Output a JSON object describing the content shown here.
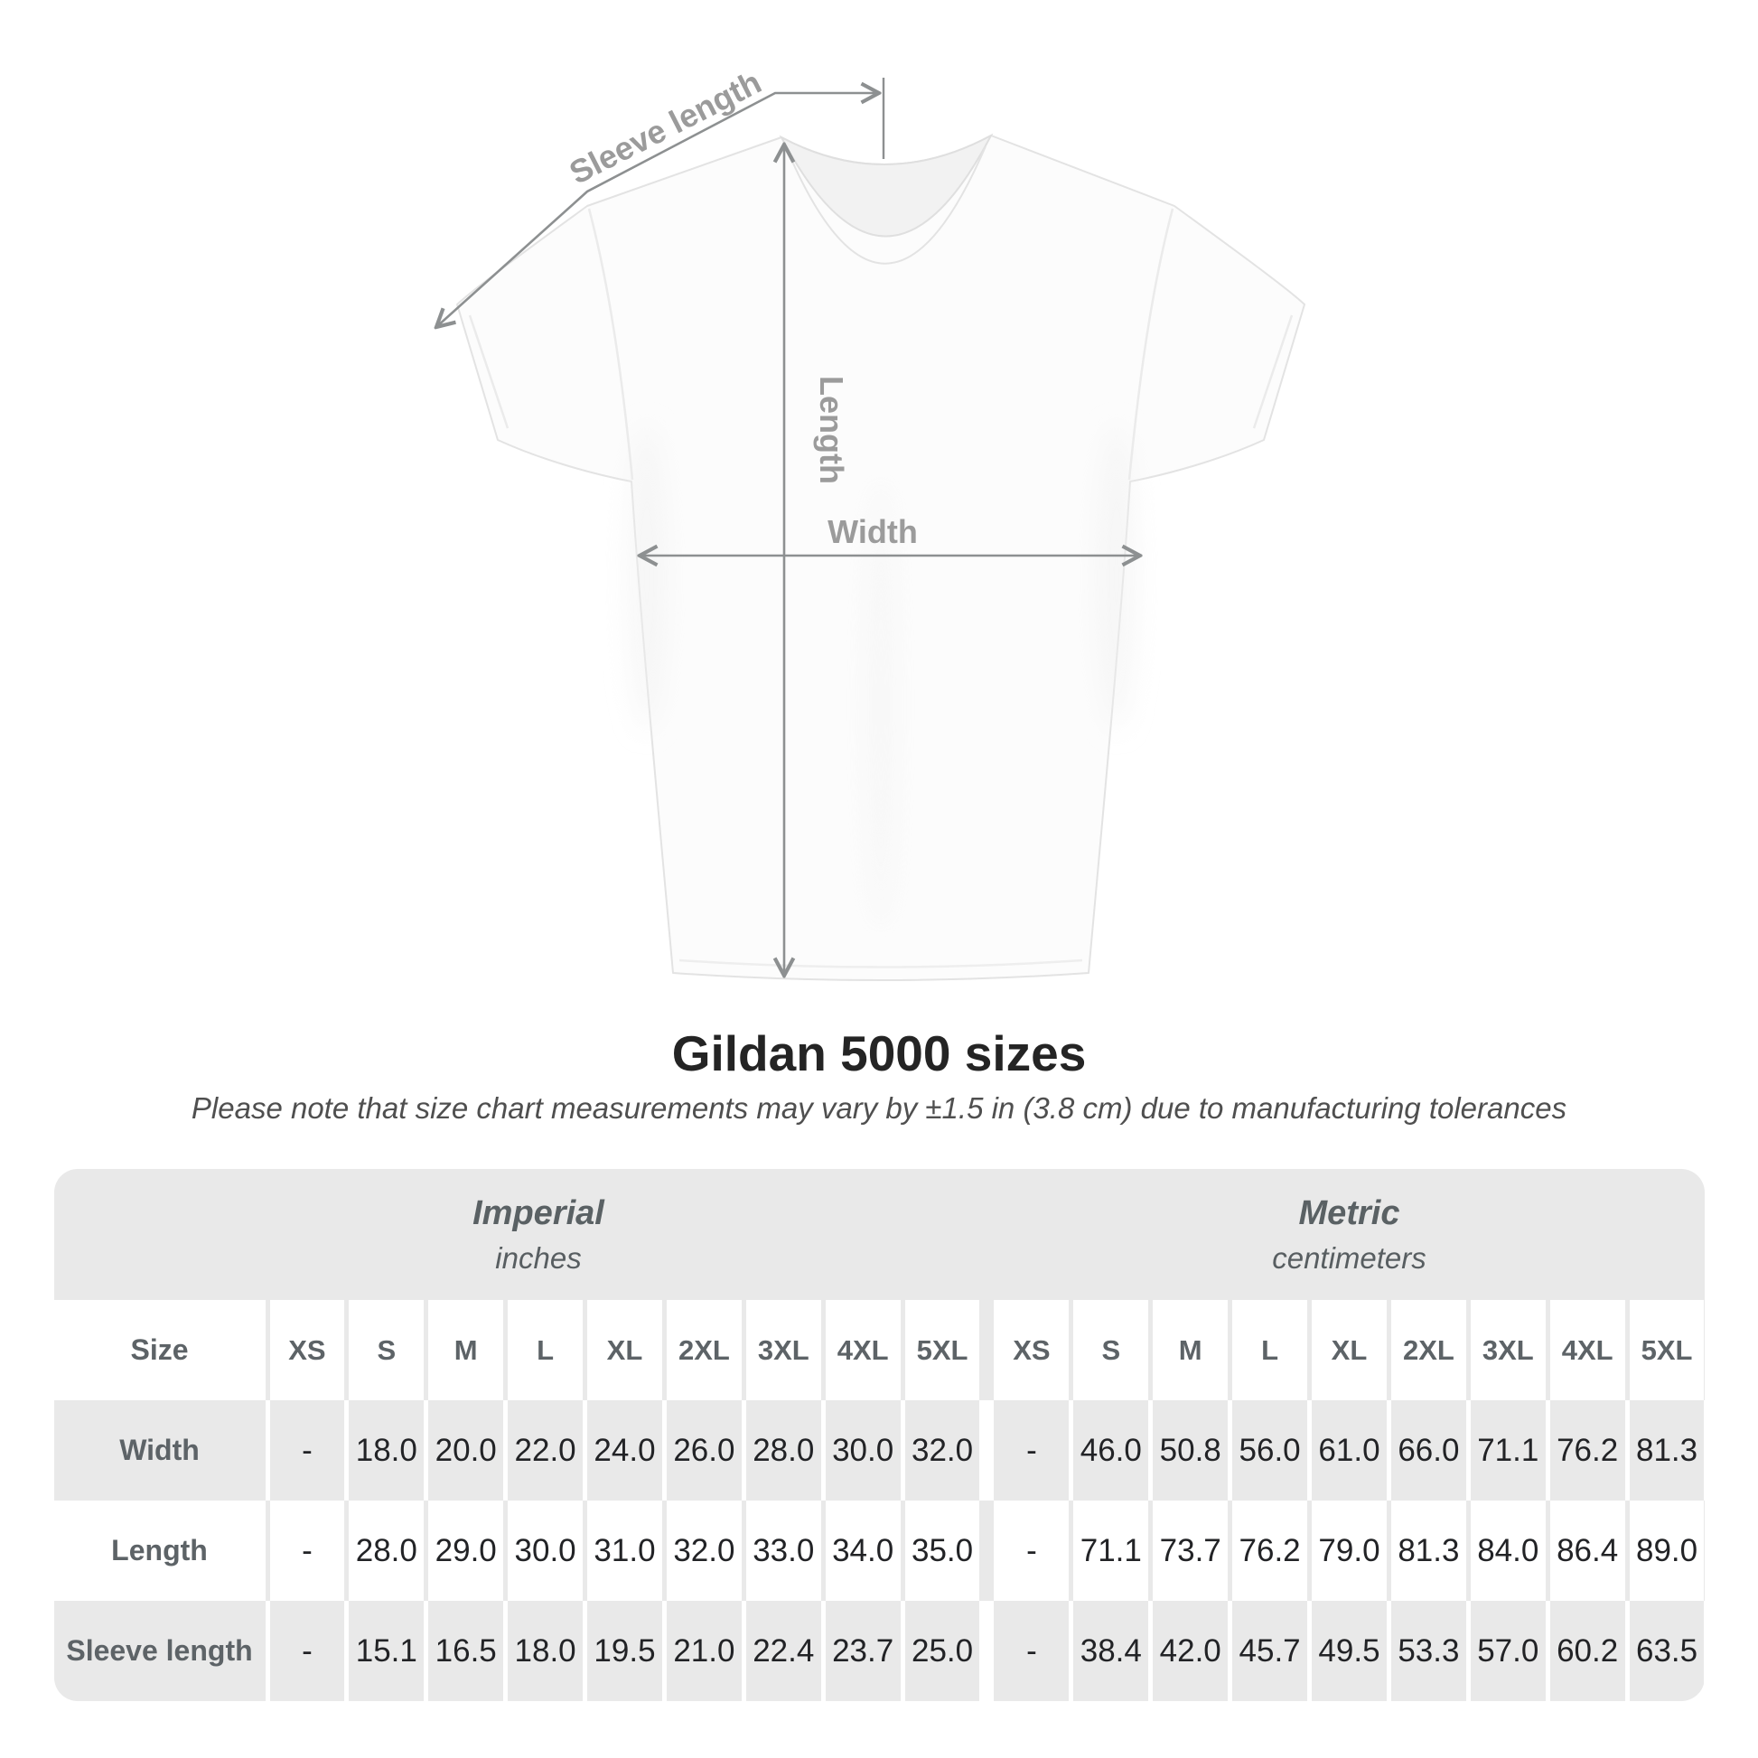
{
  "page": {
    "background": "#ffffff"
  },
  "diagram": {
    "sleeve_length_label": "Sleeve length",
    "length_label": "Length",
    "width_label": "Width",
    "annotation_color": "#8d9091",
    "label_color": "#9b9b9b",
    "shirt_outline_color": "#e3e3e3"
  },
  "chart_data": {
    "type": "table",
    "title": "Gildan 5000 sizes",
    "note": "Please note that size chart measurements may vary by ±1.5 in (3.8 cm) due to manufacturing tolerances",
    "size_column_header": "Size",
    "sizes": [
      "XS",
      "S",
      "M",
      "L",
      "XL",
      "2XL",
      "3XL",
      "4XL",
      "5XL"
    ],
    "sections": [
      {
        "label": "Imperial",
        "unit": "inches"
      },
      {
        "label": "Metric",
        "unit": "centimeters"
      }
    ],
    "rows": [
      {
        "label": "Width",
        "imperial": [
          "-",
          "18.0",
          "20.0",
          "22.0",
          "24.0",
          "26.0",
          "28.0",
          "30.0",
          "32.0"
        ],
        "metric": [
          "-",
          "46.0",
          "50.8",
          "56.0",
          "61.0",
          "66.0",
          "71.1",
          "76.2",
          "81.3"
        ]
      },
      {
        "label": "Length",
        "imperial": [
          "-",
          "28.0",
          "29.0",
          "30.0",
          "31.0",
          "32.0",
          "33.0",
          "34.0",
          "35.0"
        ],
        "metric": [
          "-",
          "71.1",
          "73.7",
          "76.2",
          "79.0",
          "81.3",
          "84.0",
          "86.4",
          "89.0"
        ]
      },
      {
        "label": "Sleeve length",
        "imperial": [
          "-",
          "15.1",
          "16.5",
          "18.0",
          "19.5",
          "21.0",
          "22.4",
          "23.7",
          "25.0"
        ],
        "metric": [
          "-",
          "38.4",
          "42.0",
          "45.7",
          "49.5",
          "53.3",
          "57.0",
          "60.2",
          "63.5"
        ]
      }
    ],
    "colors": {
      "band": "#e9e9e9",
      "cell_gray": "#e9e9e9",
      "header_text": "#5d6367",
      "value_text": "#222326"
    }
  }
}
